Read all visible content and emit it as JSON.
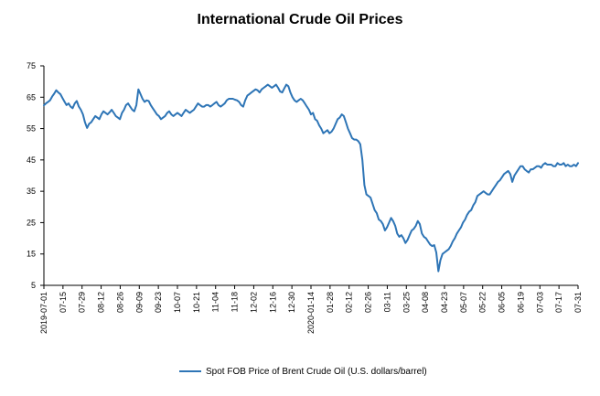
{
  "chart_data": {
    "type": "line",
    "title": "International Crude Oil Prices",
    "xlabel": "",
    "ylabel": "",
    "ylim": [
      5,
      75
    ],
    "y_ticks": [
      5,
      15,
      25,
      35,
      45,
      55,
      65,
      75
    ],
    "x_tick_labels": [
      "2019-07-01",
      "07-15",
      "07-29",
      "08-12",
      "08-26",
      "09-09",
      "09-23",
      "10-07",
      "10-21",
      "11-04",
      "11-18",
      "12-02",
      "12-16",
      "12-30",
      "2020-01-14",
      "01-28",
      "02-12",
      "02-26",
      "03-11",
      "03-25",
      "04-08",
      "04-23",
      "05-07",
      "05-22",
      "06-05",
      "06-19",
      "07-03",
      "07-17",
      "07-31"
    ],
    "grid": false,
    "legend_position": "bottom",
    "colors": {
      "series": "#2e75b6"
    },
    "series": [
      {
        "name": "Spot FOB Price of Brent Crude Oil (U.S. dollars/barrel)",
        "values": [
          62.4,
          63.0,
          63.5,
          64.0,
          65.2,
          66.1,
          67.2,
          66.5,
          66.0,
          64.8,
          63.6,
          62.5,
          63.0,
          62.0,
          61.5,
          63.0,
          63.8,
          62.0,
          61.0,
          59.5,
          57.0,
          55.2,
          56.5,
          57.0,
          58.0,
          59.0,
          58.5,
          58.0,
          59.5,
          60.5,
          60.0,
          59.5,
          60.2,
          61.0,
          60.0,
          59.0,
          58.5,
          58.0,
          60.0,
          61.0,
          62.5,
          63.0,
          62.0,
          61.0,
          60.5,
          62.5,
          67.5,
          66.0,
          64.5,
          63.5,
          64.0,
          63.8,
          62.5,
          61.5,
          60.5,
          59.5,
          59.0,
          58.0,
          58.5,
          59.0,
          60.0,
          60.5,
          59.5,
          59.0,
          59.5,
          60.0,
          59.5,
          59.0,
          60.0,
          61.0,
          60.5,
          60.0,
          60.5,
          61.0,
          62.0,
          63.0,
          62.5,
          62.0,
          62.0,
          62.5,
          62.5,
          62.0,
          62.5,
          63.0,
          63.5,
          62.5,
          62.0,
          62.5,
          63.0,
          64.0,
          64.5,
          64.5,
          64.5,
          64.2,
          64.0,
          63.5,
          62.5,
          62.0,
          64.0,
          65.5,
          66.0,
          66.5,
          67.0,
          67.5,
          67.2,
          66.5,
          67.5,
          68.0,
          68.5,
          69.0,
          68.5,
          68.0,
          68.5,
          69.0,
          68.0,
          66.8,
          66.5,
          67.8,
          69.0,
          68.5,
          66.5,
          65.0,
          64.0,
          63.5,
          64.0,
          64.5,
          64.0,
          63.0,
          62.0,
          61.0,
          59.5,
          60.0,
          58.0,
          57.5,
          56.0,
          55.0,
          53.5,
          54.0,
          54.5,
          53.5,
          54.0,
          55.0,
          56.5,
          58.0,
          58.5,
          59.5,
          59.0,
          57.0,
          55.0,
          53.5,
          52.0,
          51.5,
          51.5,
          51.0,
          50.0,
          45.0,
          37.0,
          34.0,
          33.5,
          33.0,
          31.0,
          29.0,
          28.0,
          26.0,
          25.5,
          24.5,
          22.5,
          23.5,
          25.0,
          26.5,
          25.5,
          24.0,
          21.5,
          20.5,
          21.0,
          20.0,
          18.5,
          19.5,
          21.0,
          22.5,
          23.0,
          24.0,
          25.5,
          24.5,
          21.5,
          20.5,
          20.0,
          19.0,
          18.0,
          17.5,
          17.8,
          15.5,
          9.5,
          13.0,
          15.0,
          15.5,
          16.0,
          16.5,
          17.5,
          19.0,
          20.0,
          21.5,
          22.5,
          23.5,
          25.0,
          26.0,
          27.5,
          28.5,
          29.0,
          30.5,
          31.5,
          33.5,
          34.0,
          34.5,
          35.0,
          34.5,
          34.0,
          34.0,
          35.0,
          36.0,
          37.0,
          38.0,
          38.5,
          39.5,
          40.5,
          41.0,
          41.5,
          40.5,
          38.0,
          40.0,
          41.0,
          42.0,
          43.0,
          43.0,
          42.0,
          41.5,
          41.0,
          42.0,
          42.0,
          42.5,
          43.0,
          43.0,
          42.5,
          43.5,
          44.0,
          43.5,
          43.5,
          43.5,
          43.0,
          43.0,
          44.0,
          43.5,
          43.5,
          44.0,
          43.0,
          43.5,
          43.0,
          43.0,
          43.5,
          43.0,
          44.0
        ]
      }
    ]
  }
}
